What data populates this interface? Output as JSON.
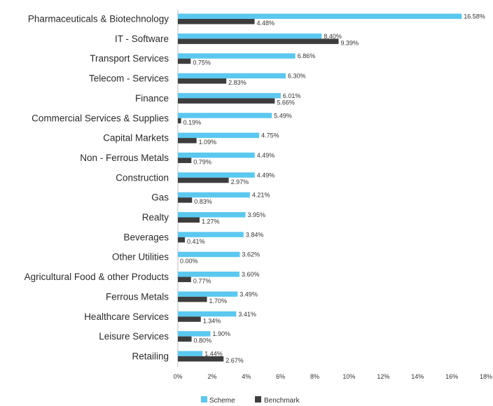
{
  "chart_data": {
    "type": "bar",
    "orientation": "horizontal",
    "categories": [
      "Pharmaceuticals & Biotechnology",
      "IT - Software",
      "Transport Services",
      "Telecom - Services",
      "Finance",
      "Commercial Services & Supplies",
      "Capital Markets",
      "Non - Ferrous Metals",
      "Construction",
      "Gas",
      "Realty",
      "Beverages",
      "Other Utilities",
      "Agricultural Food & other Products",
      "Ferrous Metals",
      "Healthcare Services",
      "Leisure Services",
      "Retailing"
    ],
    "series": [
      {
        "name": "Scheme",
        "color": "#5BC8F0",
        "values": [
          16.58,
          8.4,
          6.86,
          6.3,
          6.01,
          5.49,
          4.75,
          4.49,
          4.49,
          4.21,
          3.95,
          3.84,
          3.62,
          3.6,
          3.49,
          3.41,
          1.9,
          1.44
        ],
        "labels": [
          "16.58%",
          "8.40%",
          "6.86%",
          "6.30%",
          "6.01%",
          "5.49%",
          "4.75%",
          "4.49%",
          "4.49%",
          "4.21%",
          "3.95%",
          "3.84%",
          "3.62%",
          "3.60%",
          "3.49%",
          "3.41%",
          "1.90%",
          "1.44%"
        ]
      },
      {
        "name": "Benchmark",
        "color": "#3D3D3D",
        "values": [
          4.48,
          9.39,
          0.75,
          2.83,
          5.66,
          0.19,
          1.09,
          0.79,
          2.97,
          0.83,
          1.27,
          0.41,
          0.0,
          0.77,
          1.7,
          1.34,
          0.8,
          2.67
        ],
        "labels": [
          "4.48%",
          "9.39%",
          "0.75%",
          "2.83%",
          "5.66%",
          "0.19%",
          "1.09%",
          "0.79%",
          "2.97%",
          "0.83%",
          "1.27%",
          "0.41%",
          "0.00%",
          "0.77%",
          "1.70%",
          "1.34%",
          "0.80%",
          "2.67%"
        ]
      }
    ],
    "xlim": [
      0,
      18
    ],
    "xticks": [
      0,
      2,
      4,
      6,
      8,
      10,
      12,
      14,
      16,
      18
    ],
    "xtick_labels": [
      "0%",
      "2%",
      "4%",
      "6%",
      "8%",
      "10%",
      "12%",
      "14%",
      "16%",
      "18%"
    ],
    "grid": false,
    "legend_position": "bottom-center",
    "title": "",
    "xlabel": "",
    "ylabel": ""
  }
}
